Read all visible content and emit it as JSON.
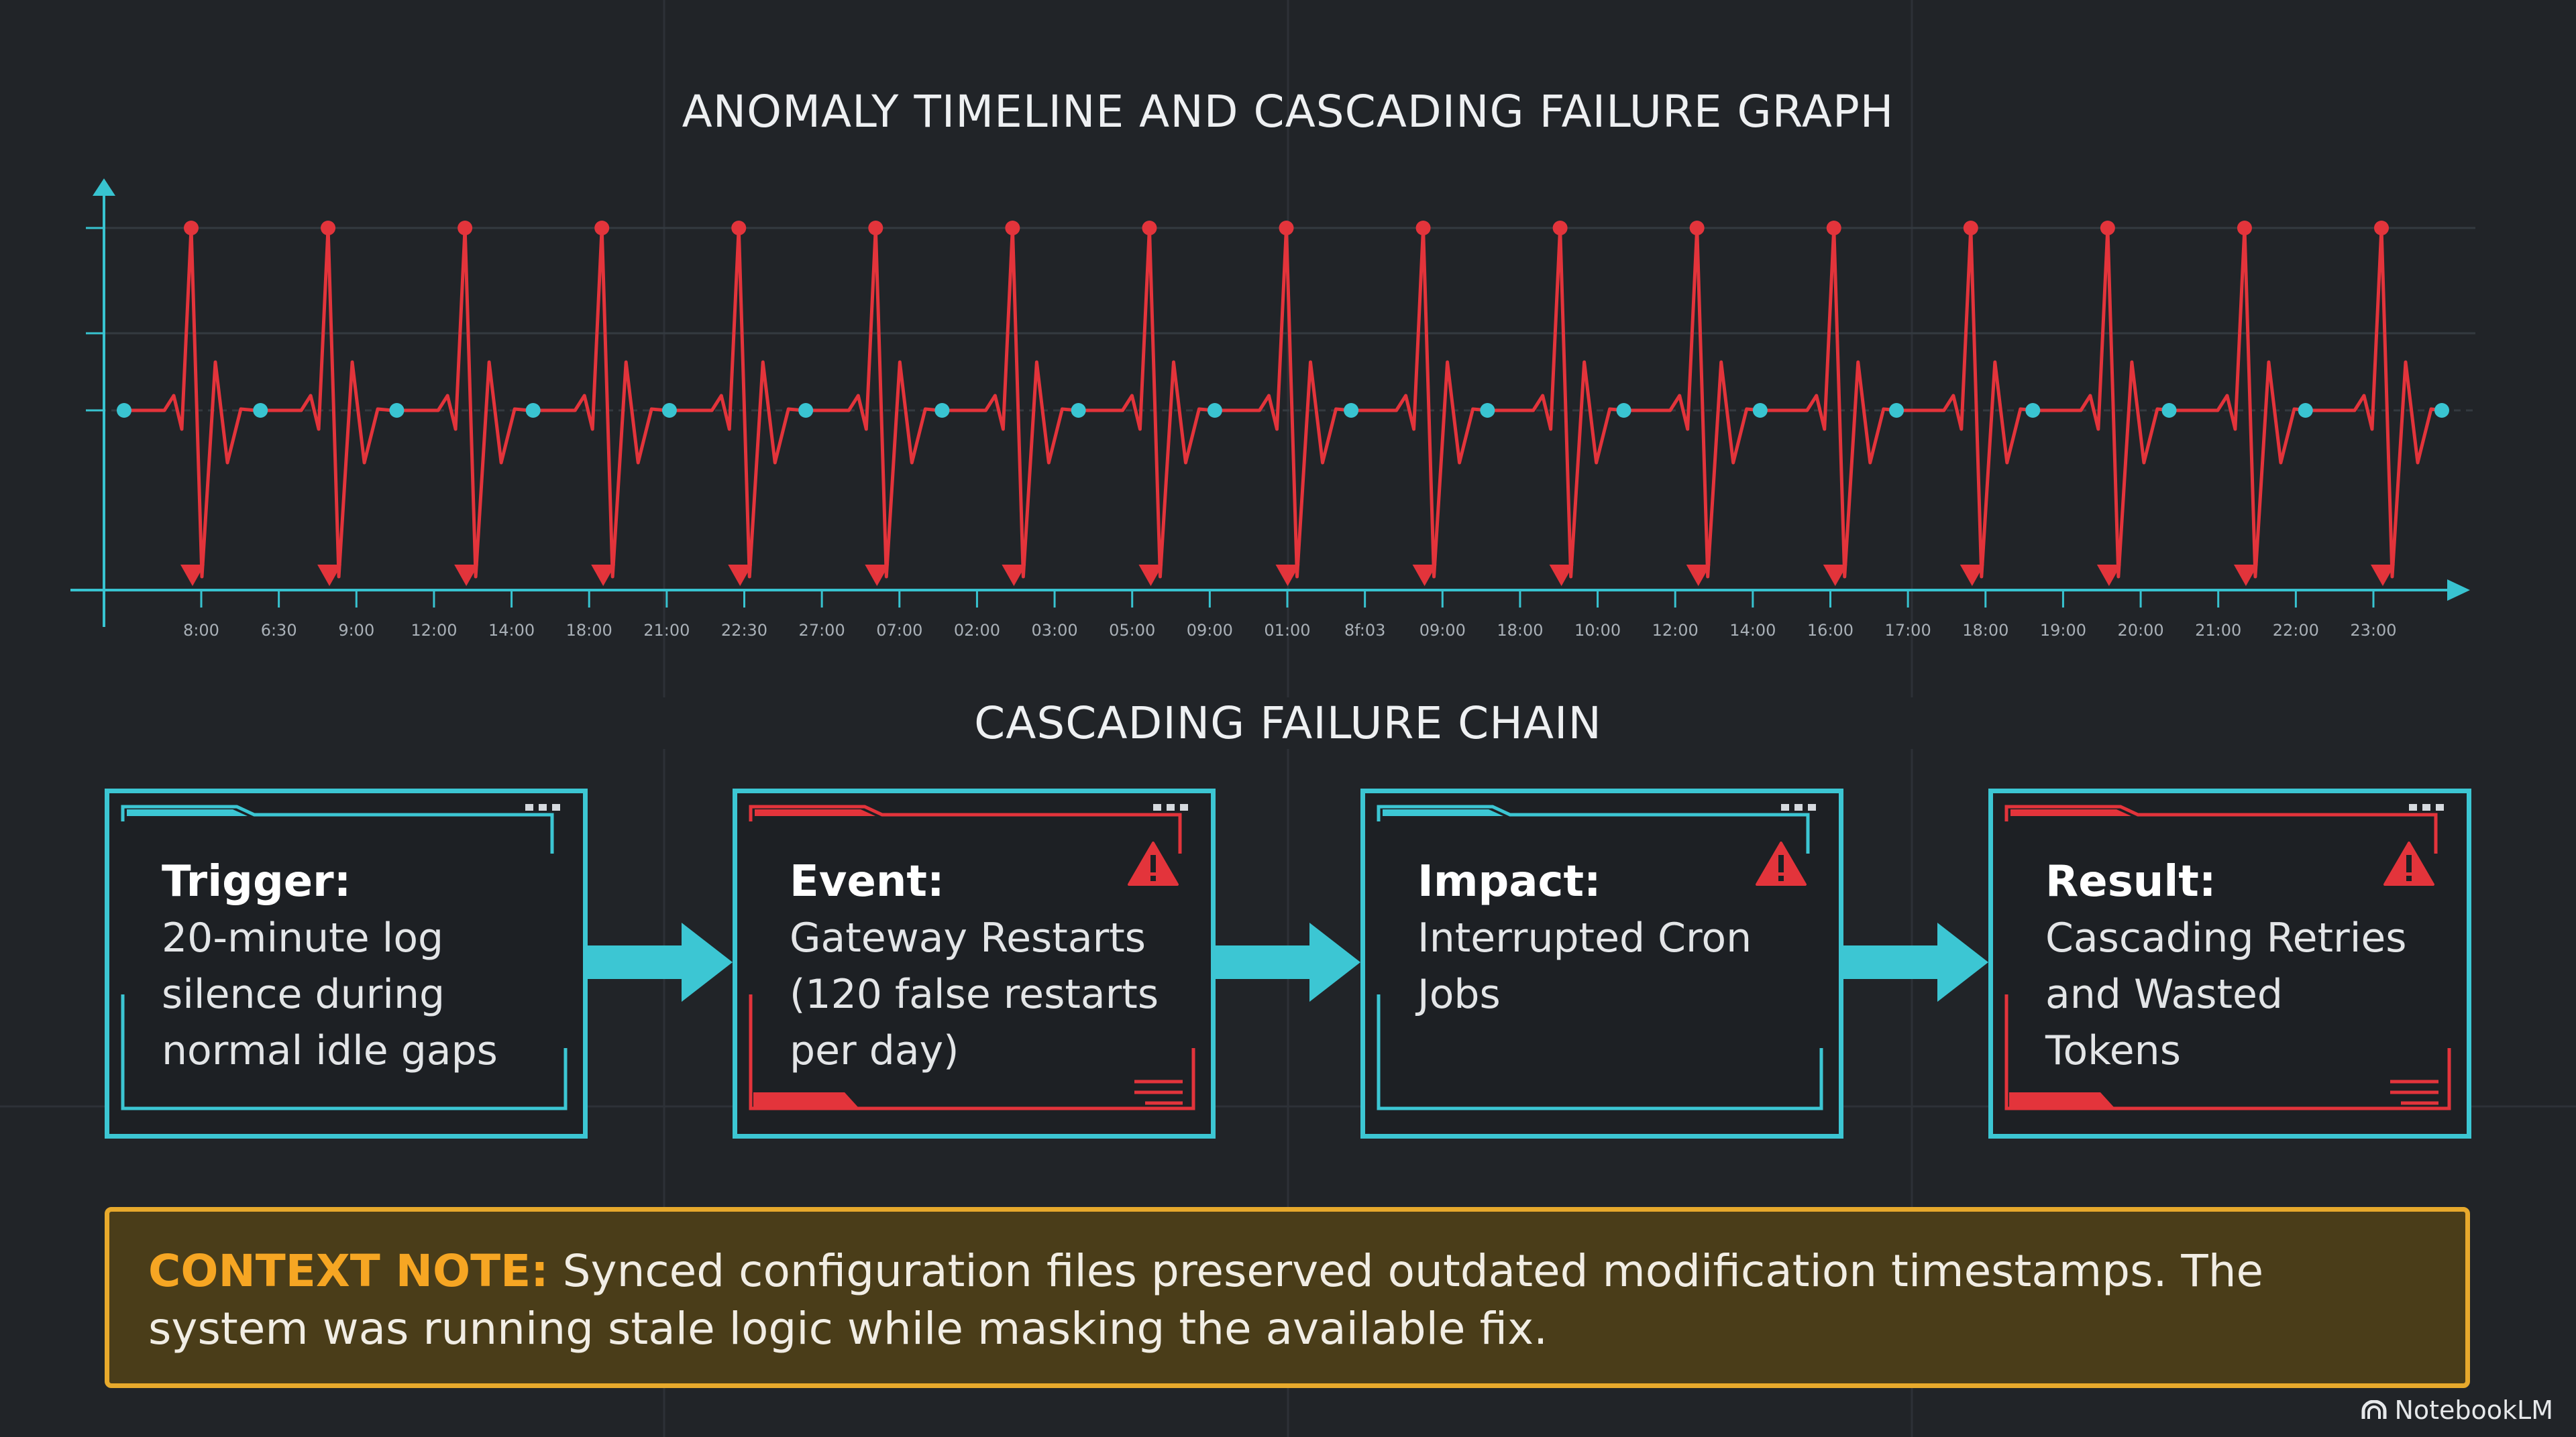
{
  "graph_title": "ANOMALY TIMELINE AND CASCADING FAILURE GRAPH",
  "chain_title": "CASCADING FAILURE CHAIN",
  "chart_data": {
    "type": "line",
    "x_labels": [
      "8:00",
      "6:30",
      "9:00",
      "12:00",
      "14:00",
      "18:00",
      "21:00",
      "22:30",
      "27:00",
      "07:00",
      "02:00",
      "03:00",
      "05:00",
      "09:00",
      "01:00",
      "8f:03",
      "09:00",
      "18:00",
      "10:00",
      "12:00",
      "14:00",
      "16:00",
      "17:00",
      "18:00",
      "19:00",
      "20:00",
      "21:00",
      "22:00",
      "23:00"
    ],
    "baseline_marker_count": 18,
    "spike_count": 17,
    "grid": true,
    "colors": {
      "axis": "#38c3d0",
      "signal": "#e3343b",
      "baseline": "#39c4d1"
    }
  },
  "chain": [
    {
      "head": "Trigger:",
      "lines": [
        "20-minute log",
        "silence during",
        "normal idle gaps"
      ],
      "accent": "#3cc6d3",
      "warning": false
    },
    {
      "head": "Event:",
      "lines": [
        "Gateway Restarts",
        "(120 false restarts",
        "per day)"
      ],
      "accent": "#e3343b",
      "warning": true
    },
    {
      "head": "Impact:",
      "lines": [
        "Interrupted Cron",
        "Jobs"
      ],
      "accent": "#3cc6d3",
      "warning": true
    },
    {
      "head": "Result:",
      "lines": [
        "Cascading Retries",
        "and Wasted Tokens"
      ],
      "accent": "#e3343b",
      "warning": true
    }
  ],
  "note": {
    "label": "CONTEXT NOTE:",
    "text": "Synced configuration files preserved outdated modification timestamps. The system was running stale logic while masking the available fix."
  },
  "brand": "NotebookLM"
}
